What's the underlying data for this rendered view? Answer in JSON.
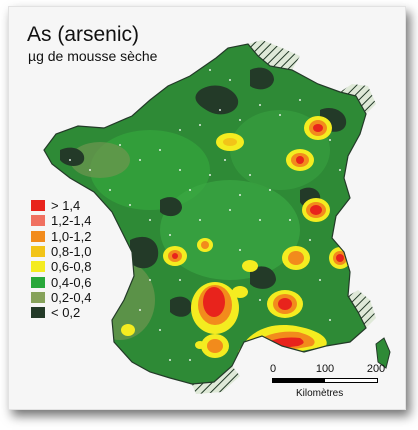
{
  "title": "As (arsenic)",
  "subtitle": "µg de mousse sèche",
  "legend": [
    {
      "label": "> 1,4",
      "color": "#e8231c"
    },
    {
      "label": "1,2-1,4",
      "color": "#f07060"
    },
    {
      "label": "1,0-1,2",
      "color": "#f28b1c"
    },
    {
      "label": "0,8-1,0",
      "color": "#f2c418"
    },
    {
      "label": "0,6-0,8",
      "color": "#f4ec20"
    },
    {
      "label": "0,4-0,6",
      "color": "#28a83a"
    },
    {
      "label": "0,2-0,4",
      "color": "#86a25a"
    },
    {
      "label": "< 0,2",
      "color": "#233a28"
    }
  ],
  "scale": {
    "ticks": [
      "0",
      "100",
      "200"
    ],
    "unit": "Kilomètres"
  }
}
